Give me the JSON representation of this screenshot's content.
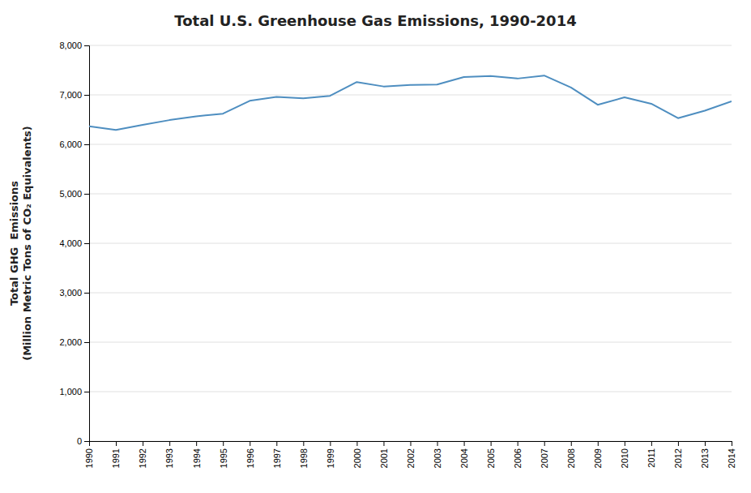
{
  "chart_data": {
    "type": "line",
    "title": "Total U.S. Greenhouse Gas Emissions, 1990-2014",
    "ylabel": "Total GHG  Emissions\n(Million Metric Tons of CO₂ Equivalents)",
    "x": [
      1990,
      1991,
      1992,
      1993,
      1994,
      1995,
      1996,
      1997,
      1998,
      1999,
      2000,
      2001,
      2002,
      2003,
      2004,
      2005,
      2006,
      2007,
      2008,
      2009,
      2010,
      2011,
      2012,
      2013,
      2014
    ],
    "values": [
      6363,
      6290,
      6392,
      6490,
      6566,
      6620,
      6880,
      6960,
      6930,
      6980,
      7260,
      7170,
      7200,
      7210,
      7360,
      7380,
      7330,
      7390,
      7150,
      6800,
      6950,
      6820,
      6530,
      6680,
      6870
    ],
    "color": "#4e8ec0",
    "xlim": [
      1990,
      2014
    ],
    "xticks": [
      1990,
      1991,
      1992,
      1993,
      1994,
      1995,
      1996,
      1997,
      1998,
      1999,
      2000,
      2001,
      2002,
      2003,
      2004,
      2005,
      2006,
      2007,
      2008,
      2009,
      2010,
      2011,
      2012,
      2013,
      2014
    ],
    "ylim": [
      0,
      8000
    ],
    "yticks": [
      0,
      {
        "value": 1000,
        "label": "1,000"
      },
      {
        "value": 2000,
        "label": "2,000"
      },
      {
        "value": 3000,
        "label": "3,000"
      },
      {
        "value": 4000,
        "label": "4,000"
      },
      {
        "value": 5000,
        "label": "5,000"
      },
      {
        "value": 6000,
        "label": "6,000"
      },
      {
        "value": 7000,
        "label": "7,000"
      },
      {
        "value": 8000,
        "label": "8,000"
      }
    ],
    "grid": true
  }
}
